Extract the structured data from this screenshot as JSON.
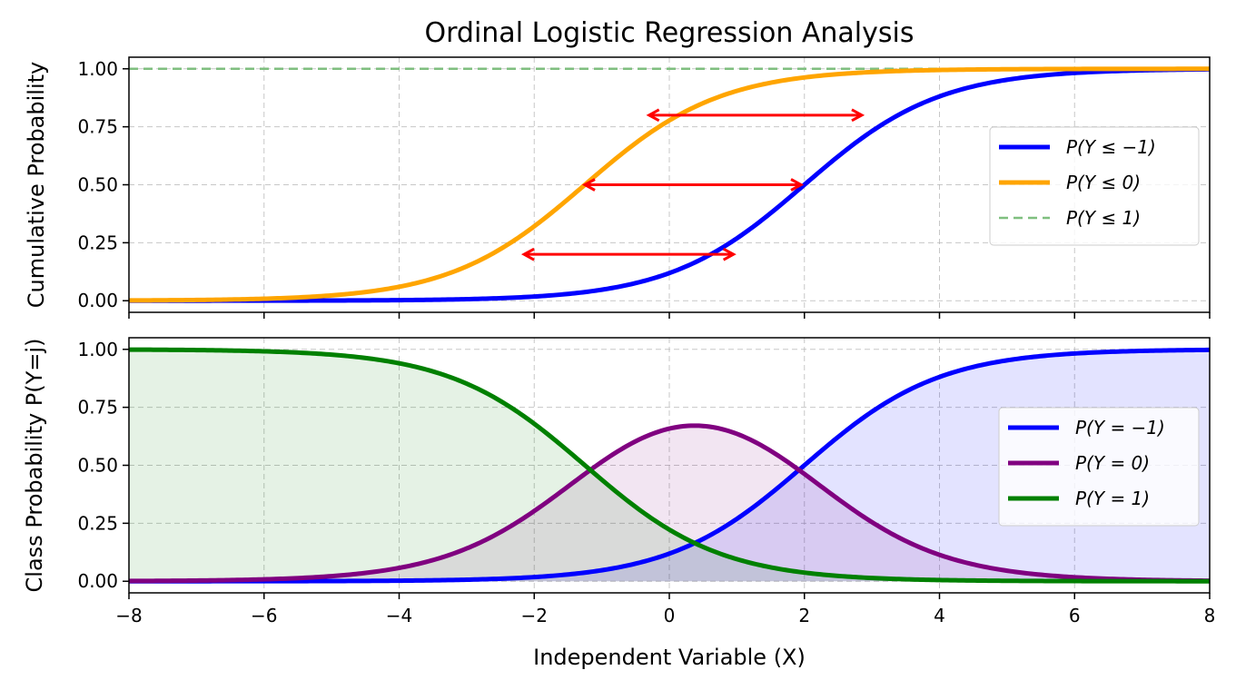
{
  "chart_data": [
    {
      "type": "line",
      "title": "Ordinal Logistic Regression Analysis",
      "xlabel": "",
      "ylabel": "Cumulative Probability",
      "xlim": [
        -8,
        8
      ],
      "ylim": [
        -0.05,
        1.05
      ],
      "xticks": [
        -8,
        -6,
        -4,
        -2,
        0,
        2,
        4,
        6,
        8
      ],
      "xticklabels": [
        "",
        "",
        "",
        "",
        "",
        "",
        "",
        "",
        ""
      ],
      "yticks": [
        0,
        0.25,
        0.5,
        0.75,
        1.0
      ],
      "yticklabels": [
        "0.00",
        "0.25",
        "0.50",
        "0.75",
        "1.00"
      ],
      "grid": true,
      "legend_position": "center-right",
      "thresholds": [
        -1.25,
        2.0
      ],
      "series": [
        {
          "name": "P(Y ≤ −1)",
          "color": "#0000ff",
          "style": "solid",
          "threshold_index": 1
        },
        {
          "name": "P(Y ≤ 0)",
          "color": "#ffa500",
          "style": "solid",
          "threshold_index": 0
        },
        {
          "name": "P(Y ≤ 1)",
          "color": "#7fbf7f",
          "style": "dashed",
          "constant": 1.0
        }
      ],
      "annotations": [
        {
          "type": "double-arrow",
          "from": [
            -2.15,
            0.2
          ],
          "to": [
            0.95,
            0.2
          ],
          "color": "#ff0000"
        },
        {
          "type": "double-arrow",
          "from": [
            -1.25,
            0.5
          ],
          "to": [
            1.95,
            0.5
          ],
          "color": "#ff0000"
        },
        {
          "type": "double-arrow",
          "from": [
            -0.3,
            0.8
          ],
          "to": [
            2.85,
            0.8
          ],
          "color": "#ff0000"
        }
      ]
    },
    {
      "type": "area",
      "title": "",
      "xlabel": "Independent Variable (X)",
      "ylabel": "Class Probability  P(Y=j)",
      "xlim": [
        -8,
        8
      ],
      "ylim": [
        -0.05,
        1.05
      ],
      "xticks": [
        -8,
        -6,
        -4,
        -2,
        0,
        2,
        4,
        6,
        8
      ],
      "xticklabels": [
        "−8",
        "−6",
        "−4",
        "−2",
        "0",
        "2",
        "4",
        "6",
        "8"
      ],
      "yticks": [
        0,
        0.25,
        0.5,
        0.75,
        1.0
      ],
      "yticklabels": [
        "0.00",
        "0.25",
        "0.50",
        "0.75",
        "1.00"
      ],
      "grid": true,
      "legend_position": "center-right",
      "series": [
        {
          "name": "P(Y = −1)",
          "color": "#0000ff",
          "fill": "#0000ff",
          "fill_opacity": 0.11
        },
        {
          "name": "P(Y = 0)",
          "color": "#800080",
          "fill": "#800080",
          "fill_opacity": 0.1
        },
        {
          "name": "P(Y = 1)",
          "color": "#008000",
          "fill": "#008000",
          "fill_opacity": 0.1
        }
      ]
    }
  ]
}
